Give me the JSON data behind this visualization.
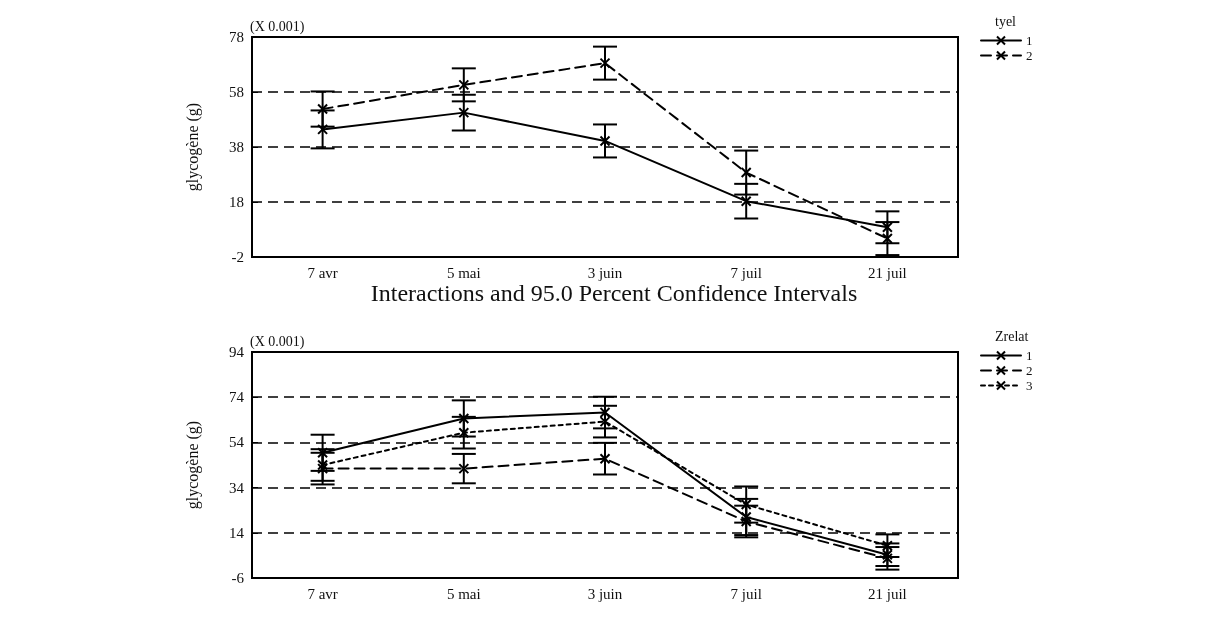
{
  "chart_data": [
    {
      "type": "line",
      "ylabel": "glycogène (g)",
      "annotations": [
        "(X 0.001)"
      ],
      "categories": [
        "7 avr",
        "5 mai",
        "3 juin",
        "7 juil",
        "21 juil"
      ],
      "legend_title": "tyel",
      "legend": "right",
      "grid": "y",
      "marker": "cross",
      "ylim": [
        -2,
        78
      ],
      "yticks": [
        -2,
        18,
        38,
        58,
        78
      ],
      "series": [
        {
          "name": "1",
          "color": "#000000",
          "line_style": "solid",
          "values": [
            44.4,
            50.5,
            40.2,
            18.3,
            8.8
          ],
          "errors": [
            6.9,
            6.5,
            6,
            6.3,
            5.8
          ]
        },
        {
          "name": "2",
          "color": "#000000",
          "line_style": "dashed",
          "values": [
            51.8,
            60.6,
            68.5,
            28.7,
            4.7
          ],
          "errors": [
            6.4,
            6,
            6,
            8,
            6
          ]
        }
      ]
    },
    {
      "type": "line",
      "title": "Interactions and 95.0 Percent Confidence Intervals",
      "ylabel": "glycogène (g)",
      "annotations": [
        "(X 0.001)"
      ],
      "categories": [
        "7 avr",
        "5 mai",
        "3 juin",
        "7 juil",
        "21 juil"
      ],
      "legend_title": "Zrelat",
      "legend": "right",
      "grid": "y",
      "marker": "cross",
      "ylim": [
        -6,
        94
      ],
      "yticks": [
        -6,
        14,
        34,
        54,
        74,
        94
      ],
      "series": [
        {
          "name": "1",
          "color": "#000000",
          "line_style": "solid",
          "values": [
            49.4,
            64.6,
            67.2,
            21,
            4.3
          ],
          "errors": [
            8,
            8,
            7,
            8,
            5
          ]
        },
        {
          "name": "2",
          "color": "#000000",
          "line_style": "dashed",
          "values": [
            42.4,
            42.4,
            46.8,
            19,
            2.7
          ],
          "errors": [
            7,
            6.5,
            7,
            7,
            5
          ]
        },
        {
          "name": "3",
          "color": "#000000",
          "line_style": "dotted",
          "values": [
            44,
            58.3,
            63.2,
            26.5,
            8.3
          ],
          "errors": [
            7,
            7,
            7,
            8,
            5
          ]
        }
      ]
    }
  ]
}
